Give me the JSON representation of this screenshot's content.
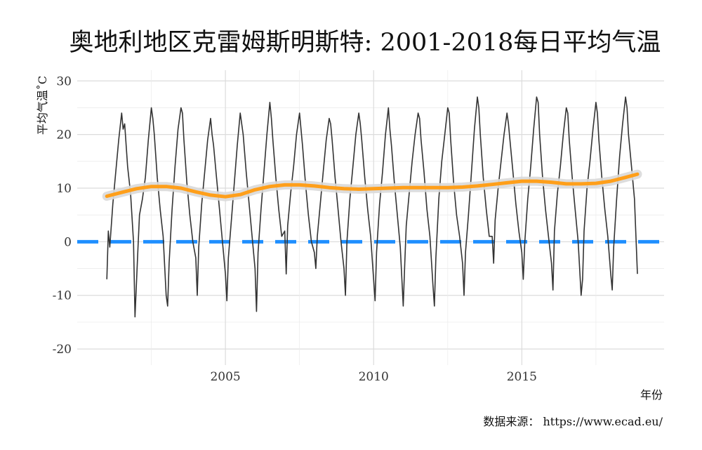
{
  "chart_data": {
    "type": "line",
    "title": "奥地利地区克雷姆斯明斯特: 2001-2018每日平均气温",
    "xlabel": "年份",
    "ylabel": "平均气温˚C",
    "caption": "数据来源：  https://www.ecad.eu/",
    "x_unit": "decimal year",
    "xlim": [
      2000.0,
      2019.8
    ],
    "ylim": [
      -23,
      32
    ],
    "x_ticks": [
      2005,
      2010,
      2015
    ],
    "y_ticks": [
      -20,
      -10,
      0,
      10,
      20,
      30
    ],
    "x_tick_labels": [
      "2005",
      "2010",
      "2015"
    ],
    "y_tick_labels": [
      "-20",
      "-10",
      "0",
      "10",
      "20",
      "30"
    ],
    "grid": true,
    "reference_line": {
      "y": 0,
      "color": "#1f8fff",
      "style": "dashed"
    },
    "series": [
      {
        "style": "line",
        "color": "#333333",
        "x": [
          2001.0,
          2001.05,
          2001.1,
          2001.2,
          2001.3,
          2001.4,
          2001.5,
          2001.55,
          2001.6,
          2001.7,
          2001.8,
          2001.9,
          2001.95,
          2002.05,
          2002.1,
          2002.2,
          2002.3,
          2002.4,
          2002.5,
          2002.55,
          2002.6,
          2002.7,
          2002.8,
          2002.9,
          2003.0,
          2003.05,
          2003.1,
          2003.2,
          2003.3,
          2003.4,
          2003.5,
          2003.55,
          2003.6,
          2003.7,
          2003.8,
          2003.9,
          2004.0,
          2004.05,
          2004.1,
          2004.2,
          2004.3,
          2004.4,
          2004.5,
          2004.55,
          2004.6,
          2004.7,
          2004.8,
          2004.9,
          2005.0,
          2005.05,
          2005.1,
          2005.2,
          2005.3,
          2005.4,
          2005.5,
          2005.55,
          2005.6,
          2005.7,
          2005.8,
          2005.9,
          2006.0,
          2006.05,
          2006.1,
          2006.2,
          2006.3,
          2006.4,
          2006.5,
          2006.55,
          2006.6,
          2006.7,
          2006.8,
          2006.9,
          2007.0,
          2007.05,
          2007.1,
          2007.2,
          2007.3,
          2007.4,
          2007.5,
          2007.55,
          2007.6,
          2007.7,
          2007.8,
          2007.9,
          2008.0,
          2008.05,
          2008.1,
          2008.2,
          2008.3,
          2008.4,
          2008.5,
          2008.55,
          2008.6,
          2008.7,
          2008.8,
          2008.9,
          2009.0,
          2009.05,
          2009.1,
          2009.2,
          2009.3,
          2009.4,
          2009.5,
          2009.55,
          2009.6,
          2009.7,
          2009.8,
          2009.9,
          2010.0,
          2010.05,
          2010.1,
          2010.2,
          2010.3,
          2010.4,
          2010.5,
          2010.55,
          2010.6,
          2010.7,
          2010.8,
          2010.9,
          2011.0,
          2011.05,
          2011.1,
          2011.2,
          2011.3,
          2011.4,
          2011.5,
          2011.55,
          2011.6,
          2011.7,
          2011.8,
          2011.9,
          2012.0,
          2012.05,
          2012.1,
          2012.2,
          2012.3,
          2012.4,
          2012.5,
          2012.55,
          2012.6,
          2012.7,
          2012.8,
          2012.9,
          2013.0,
          2013.05,
          2013.1,
          2013.2,
          2013.3,
          2013.4,
          2013.5,
          2013.55,
          2013.6,
          2013.7,
          2013.8,
          2013.9,
          2014.0,
          2014.05,
          2014.1,
          2014.2,
          2014.3,
          2014.4,
          2014.5,
          2014.55,
          2014.6,
          2014.7,
          2014.8,
          2014.9,
          2015.0,
          2015.05,
          2015.1,
          2015.2,
          2015.3,
          2015.4,
          2015.5,
          2015.55,
          2015.6,
          2015.7,
          2015.8,
          2015.9,
          2016.0,
          2016.05,
          2016.1,
          2016.2,
          2016.3,
          2016.4,
          2016.5,
          2016.55,
          2016.6,
          2016.7,
          2016.8,
          2016.9,
          2017.0,
          2017.05,
          2017.1,
          2017.2,
          2017.3,
          2017.4,
          2017.5,
          2017.55,
          2017.6,
          2017.7,
          2017.8,
          2017.9,
          2018.0,
          2018.05,
          2018.1,
          2018.2,
          2018.3,
          2018.4,
          2018.5,
          2018.55,
          2018.6,
          2018.7,
          2018.8,
          2018.9
        ],
        "y": [
          -7,
          2,
          -1,
          7,
          13,
          19,
          24,
          21,
          22,
          14,
          9,
          0,
          -14,
          -1,
          5,
          8,
          12,
          19,
          25,
          23,
          20,
          12,
          6,
          1,
          -10,
          -12,
          -4,
          6,
          14,
          21,
          25,
          24,
          19,
          11,
          5,
          0,
          -3,
          -10,
          -1,
          7,
          13,
          19,
          23,
          20,
          18,
          12,
          6,
          0,
          -6,
          -11,
          -3,
          4,
          11,
          18,
          24,
          22,
          20,
          13,
          7,
          1,
          -5,
          -13,
          -2,
          6,
          13,
          20,
          26,
          23,
          19,
          12,
          6,
          1,
          2,
          -6,
          3,
          9,
          14,
          20,
          24,
          21,
          18,
          11,
          5,
          0,
          -2,
          -5,
          1,
          7,
          13,
          19,
          23,
          22,
          19,
          12,
          6,
          0,
          -5,
          -10,
          0,
          8,
          14,
          20,
          24,
          22,
          19,
          12,
          6,
          1,
          -7,
          -11,
          -2,
          7,
          13,
          20,
          25,
          21,
          18,
          11,
          5,
          -1,
          -12,
          -4,
          3,
          9,
          15,
          20,
          24,
          23,
          19,
          13,
          6,
          1,
          -8,
          -12,
          -3,
          8,
          15,
          20,
          25,
          24,
          19,
          11,
          5,
          1,
          -4,
          -10,
          -2,
          5,
          13,
          21,
          27,
          25,
          20,
          12,
          6,
          1,
          1,
          -4,
          4,
          10,
          15,
          20,
          24,
          22,
          19,
          13,
          7,
          2,
          -2,
          -7,
          0,
          8,
          14,
          21,
          27,
          26,
          20,
          12,
          6,
          1,
          -4,
          -9,
          2,
          9,
          14,
          20,
          25,
          24,
          19,
          12,
          6,
          0,
          -10,
          -7,
          2,
          10,
          15,
          21,
          26,
          24,
          19,
          12,
          6,
          1,
          -6,
          -9,
          -1,
          8,
          16,
          22,
          27,
          25,
          20,
          14,
          8,
          -6
        ]
      },
      {
        "style": "smooth",
        "color": "#ff9f1a",
        "x": [
          2001.0,
          2001.5,
          2002.0,
          2002.5,
          2003.0,
          2003.5,
          2004.0,
          2004.5,
          2005.0,
          2005.5,
          2006.0,
          2006.5,
          2007.0,
          2007.5,
          2008.0,
          2008.5,
          2009.0,
          2009.5,
          2010.0,
          2010.5,
          2011.0,
          2011.5,
          2012.0,
          2012.5,
          2013.0,
          2013.5,
          2014.0,
          2014.5,
          2015.0,
          2015.5,
          2016.0,
          2016.5,
          2017.0,
          2017.5,
          2018.0,
          2018.5,
          2018.9
        ],
        "y": [
          8.5,
          9.2,
          9.9,
          10.3,
          10.3,
          10.0,
          9.3,
          8.7,
          8.4,
          8.8,
          9.7,
          10.3,
          10.6,
          10.6,
          10.4,
          10.1,
          9.9,
          9.8,
          9.9,
          10.0,
          10.1,
          10.1,
          10.1,
          10.1,
          10.2,
          10.4,
          10.7,
          11.0,
          11.3,
          11.3,
          11.1,
          10.8,
          10.8,
          10.9,
          11.3,
          12.0,
          12.6
        ]
      }
    ]
  }
}
